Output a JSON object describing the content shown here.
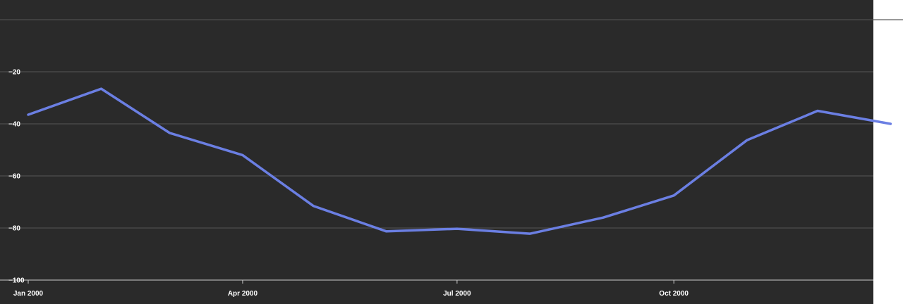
{
  "chart_data": {
    "type": "line",
    "title": "",
    "xlabel": "",
    "ylabel": "",
    "x": [
      "2000-01-01",
      "2000-02-01",
      "2000-03-01",
      "2000-04-01",
      "2000-05-01",
      "2000-06-01",
      "2000-07-01",
      "2000-08-01",
      "2000-09-01",
      "2000-10-01",
      "2000-11-01",
      "2000-12-01",
      "2001-01-01"
    ],
    "series": [
      {
        "values": [
          -36.5,
          -26.5,
          -43.5,
          -52,
          -71.5,
          -81.3,
          -80.3,
          -82.2,
          -76,
          -67.5,
          -46.3,
          -35,
          -40
        ]
      }
    ],
    "x_ticks": [
      {
        "x": "2000-01-01",
        "label": "Jan 2000"
      },
      {
        "x": "2000-04-01",
        "label": "Apr 2000"
      },
      {
        "x": "2000-07-01",
        "label": "Jul 2000"
      },
      {
        "x": "2000-10-01",
        "label": "Oct 2000"
      }
    ],
    "y_ticks": [
      {
        "value": -20,
        "label": "−20"
      },
      {
        "value": -40,
        "label": "−40"
      },
      {
        "value": -60,
        "label": "−60"
      },
      {
        "value": -80,
        "label": "−80"
      },
      {
        "value": -100,
        "label": "−100"
      }
    ],
    "ylim": [
      -100,
      0
    ],
    "grid": true,
    "colors": {
      "background": "#2a2a2a",
      "line": "#6b7fe3",
      "grid": "#555555",
      "text": "#ffffff"
    }
  }
}
